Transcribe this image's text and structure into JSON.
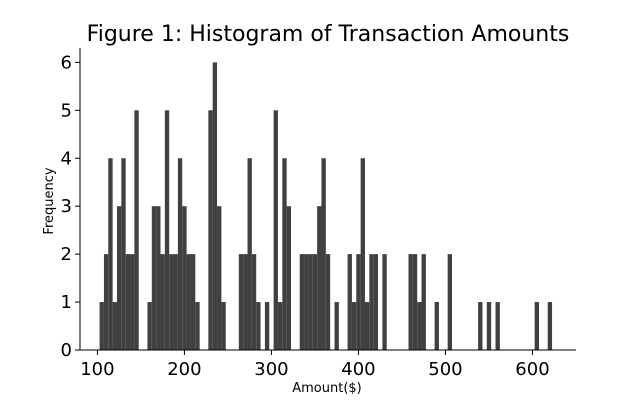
{
  "chart_data": {
    "type": "bar",
    "title": "Figure 1: Histogram of Transaction Amounts",
    "xlabel": "Amount($)",
    "ylabel": "Frequency",
    "xlim": [
      80,
      650
    ],
    "ylim": [
      0,
      6.3
    ],
    "xticks": [
      100,
      200,
      300,
      400,
      500,
      600
    ],
    "yticks": [
      0,
      1,
      2,
      3,
      4,
      5,
      6
    ],
    "grid": false,
    "legend": "none",
    "bar_color": "#404040",
    "bin_width": 5,
    "x": [
      105,
      110,
      115,
      120,
      125,
      130,
      135,
      140,
      145,
      160,
      165,
      170,
      175,
      180,
      185,
      190,
      195,
      200,
      205,
      210,
      215,
      230,
      235,
      240,
      245,
      265,
      270,
      275,
      280,
      285,
      295,
      305,
      310,
      315,
      320,
      335,
      340,
      345,
      350,
      355,
      360,
      365,
      375,
      390,
      395,
      400,
      405,
      410,
      415,
      420,
      430,
      460,
      465,
      470,
      475,
      490,
      505,
      540,
      550,
      560,
      605,
      620
    ],
    "values": [
      1,
      2,
      4,
      1,
      3,
      4,
      2,
      2,
      5,
      1,
      3,
      3,
      2,
      5,
      2,
      2,
      4,
      3,
      2,
      2,
      1,
      5,
      6,
      3,
      1,
      2,
      2,
      4,
      2,
      1,
      1,
      5,
      1,
      4,
      3,
      2,
      2,
      2,
      2,
      3,
      4,
      2,
      1,
      2,
      1,
      2,
      4,
      1,
      2,
      2,
      2,
      2,
      2,
      1,
      2,
      1,
      2,
      1,
      1,
      1,
      1,
      1
    ]
  }
}
